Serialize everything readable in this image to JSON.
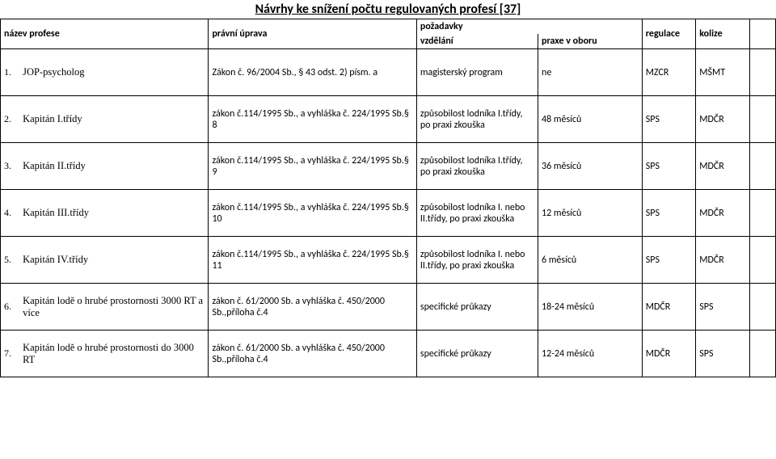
{
  "title": "Návrhy ke snížení počtu regulovaných profesí [37]",
  "headers": {
    "nazev": "název profese",
    "pravni": "právní úprava",
    "pozadavky": "požadavky",
    "vzdelani": "vzdělání",
    "praxe": "praxe v oboru",
    "regulace": "regulace",
    "kolize": "kolize"
  },
  "rows": [
    {
      "num": "1.",
      "name": "JOP-psycholog",
      "law": "Zákon č. 96/2004 Sb., § 43 odst. 2) písm. a",
      "edu": "magisterský program",
      "prax": "ne",
      "reg": "MZCR",
      "kol": "MŠMT"
    },
    {
      "num": "2.",
      "name": "Kapitán I.třídy",
      "law": "zákon č.114/1995 Sb., a vyhláška č. 224/1995 Sb.§ 8",
      "edu": "způsobilost lodníka I.třídy, po praxi zkouška",
      "prax": "48 měsíců",
      "reg": "SPS",
      "kol": "MDČR"
    },
    {
      "num": "3.",
      "name": "Kapitán II.třídy",
      "law": "zákon č.114/1995 Sb., a vyhláška č. 224/1995 Sb.§ 9",
      "edu": "způsobilost lodníka I.třídy, po praxi zkouška",
      "prax": "36 měsíců",
      "reg": "SPS",
      "kol": "MDČR"
    },
    {
      "num": "4.",
      "name": "Kapitán III.třídy",
      "law": "zákon č.114/1995 Sb., a vyhláška č. 224/1995 Sb.§ 10",
      "edu": "způsobilost lodníka I. nebo II.třídy, po praxi zkouška",
      "prax": "12 měsíců",
      "reg": "SPS",
      "kol": "MDČR"
    },
    {
      "num": "5.",
      "name": "Kapitán IV.třídy",
      "law": "zákon č.114/1995 Sb., a vyhláška č. 224/1995 Sb.§ 11",
      "edu": "způsobilost lodníka I. nebo II.třídy, po praxi zkouška",
      "prax": "6 měsíců",
      "reg": "SPS",
      "kol": "MDČR"
    },
    {
      "num": "6.",
      "name": "Kapitán lodě o hrubé prostornosti 3000 RT a více",
      "law": "zákon č. 61/2000 Sb. a vyhláška č. 450/2000 Sb.,příloha č.4",
      "edu": "specifické průkazy",
      "prax": "18-24 měsíců",
      "reg": "MDČR",
      "kol": "SPS"
    },
    {
      "num": "7.",
      "name": "Kapitán lodě o hrubé prostornosti do 3000 RT",
      "law": "zákon č. 61/2000 Sb. a vyhláška č. 450/2000 Sb.,příloha č.4",
      "edu": "specifické průkazy",
      "prax": "12-24 měsíců",
      "reg": "MDČR",
      "kol": "SPS"
    }
  ],
  "style": {
    "background": "#ffffff",
    "border_color": "#000000",
    "title_fontsize": 16,
    "cell_fontsize": 12,
    "serif_font": "Times New Roman",
    "sans_font": "Calibri"
  }
}
